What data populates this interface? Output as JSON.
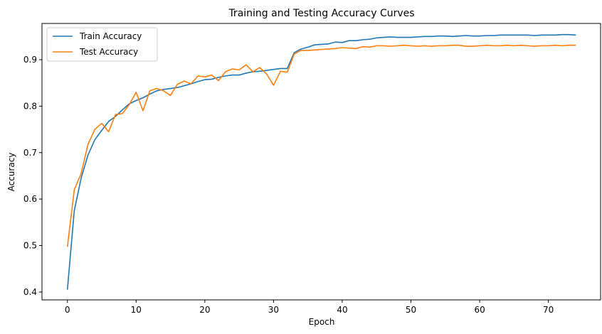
{
  "chart_data": {
    "type": "line",
    "title": "Training and Testing Accuracy Curves",
    "xlabel": "Epoch",
    "ylabel": "Accuracy",
    "xlim": [
      -3.7,
      77.7
    ],
    "ylim": [
      0.383,
      0.978
    ],
    "xticks": [
      0,
      10,
      20,
      30,
      40,
      50,
      60,
      70
    ],
    "yticks": [
      0.4,
      0.5,
      0.6,
      0.7,
      0.8,
      0.9
    ],
    "grid": false,
    "legend_position": "top-left",
    "series": [
      {
        "name": "Train Accuracy",
        "color": "#1f77b4",
        "x": [
          0,
          1,
          2,
          3,
          4,
          5,
          6,
          7,
          8,
          9,
          10,
          11,
          12,
          13,
          14,
          15,
          16,
          17,
          18,
          19,
          20,
          21,
          22,
          23,
          24,
          25,
          26,
          27,
          28,
          29,
          30,
          31,
          32,
          33,
          34,
          35,
          36,
          37,
          38,
          39,
          40,
          41,
          42,
          43,
          44,
          45,
          46,
          47,
          48,
          49,
          50,
          51,
          52,
          53,
          54,
          55,
          56,
          57,
          58,
          59,
          60,
          61,
          62,
          63,
          64,
          65,
          66,
          67,
          68,
          69,
          70,
          71,
          72,
          73,
          74
        ],
        "y": [
          0.405,
          0.575,
          0.645,
          0.695,
          0.728,
          0.748,
          0.767,
          0.778,
          0.792,
          0.805,
          0.812,
          0.818,
          0.826,
          0.833,
          0.836,
          0.838,
          0.84,
          0.844,
          0.848,
          0.853,
          0.857,
          0.858,
          0.862,
          0.865,
          0.867,
          0.867,
          0.871,
          0.874,
          0.875,
          0.877,
          0.879,
          0.881,
          0.881,
          0.915,
          0.923,
          0.927,
          0.932,
          0.933,
          0.934,
          0.938,
          0.937,
          0.941,
          0.941,
          0.943,
          0.944,
          0.947,
          0.948,
          0.949,
          0.948,
          0.948,
          0.948,
          0.949,
          0.95,
          0.95,
          0.951,
          0.951,
          0.95,
          0.951,
          0.952,
          0.951,
          0.951,
          0.952,
          0.952,
          0.953,
          0.953,
          0.953,
          0.953,
          0.953,
          0.952,
          0.953,
          0.953,
          0.953,
          0.954,
          0.954,
          0.953
        ]
      },
      {
        "name": "Test Accuracy",
        "color": "#ff7f0e",
        "x": [
          0,
          1,
          2,
          3,
          4,
          5,
          6,
          7,
          8,
          9,
          10,
          11,
          12,
          13,
          14,
          15,
          16,
          17,
          18,
          19,
          20,
          21,
          22,
          23,
          24,
          25,
          26,
          27,
          28,
          29,
          30,
          31,
          32,
          33,
          34,
          35,
          36,
          37,
          38,
          39,
          40,
          41,
          42,
          43,
          44,
          45,
          46,
          47,
          48,
          49,
          50,
          51,
          52,
          53,
          54,
          55,
          56,
          57,
          58,
          59,
          60,
          61,
          62,
          63,
          64,
          65,
          66,
          67,
          68,
          69,
          70,
          71,
          72,
          73,
          74
        ],
        "y": [
          0.497,
          0.62,
          0.655,
          0.718,
          0.75,
          0.763,
          0.745,
          0.782,
          0.784,
          0.803,
          0.83,
          0.79,
          0.833,
          0.838,
          0.833,
          0.823,
          0.847,
          0.854,
          0.848,
          0.865,
          0.863,
          0.867,
          0.855,
          0.874,
          0.88,
          0.878,
          0.889,
          0.874,
          0.883,
          0.869,
          0.845,
          0.875,
          0.873,
          0.912,
          0.92,
          0.92,
          0.921,
          0.922,
          0.923,
          0.924,
          0.926,
          0.925,
          0.924,
          0.928,
          0.927,
          0.93,
          0.93,
          0.929,
          0.93,
          0.931,
          0.93,
          0.929,
          0.93,
          0.929,
          0.93,
          0.93,
          0.931,
          0.931,
          0.929,
          0.929,
          0.93,
          0.931,
          0.93,
          0.93,
          0.931,
          0.93,
          0.931,
          0.93,
          0.929,
          0.93,
          0.93,
          0.931,
          0.93,
          0.931,
          0.931
        ]
      }
    ]
  }
}
